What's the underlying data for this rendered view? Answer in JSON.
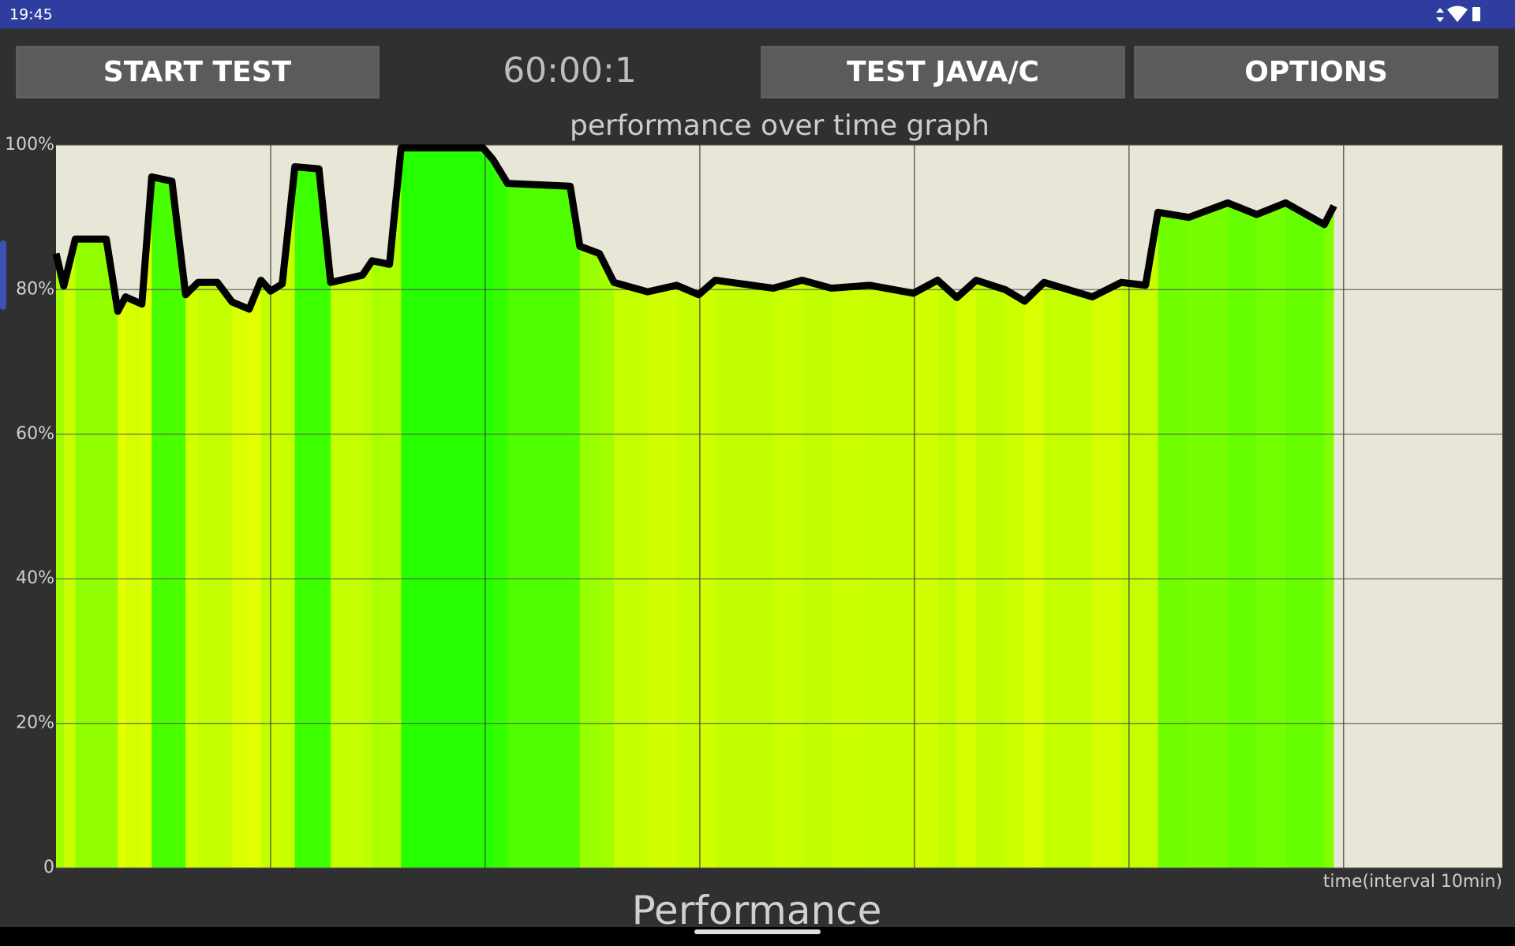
{
  "status_bar": {
    "time": "19:45"
  },
  "buttons": [
    "START TEST",
    "TEST JAVA/C",
    "OPTIONS"
  ],
  "timer": "60:00:1",
  "chart_data": {
    "type": "line",
    "title": "performance over time graph",
    "x_label": "time(interval 10min)",
    "x": [
      0,
      0.36,
      0.9,
      2.34,
      2.88,
      3.24,
      4.0,
      4.46,
      5.4,
      6.04,
      6.62,
      7.52,
      8.2,
      9.0,
      9.55,
      10.0,
      10.54,
      11.13,
      12.25,
      12.8,
      14.28,
      14.73,
      15.54,
      16.08,
      19.9,
      20.36,
      21.04,
      23.96,
      24.41,
      25.32,
      26.0,
      27.57,
      28.92,
      29.95,
      30.72,
      33.42,
      34.77,
      36.13,
      37.93,
      39.95,
      41.08,
      41.98,
      42.88,
      44.23,
      45.14,
      46.04,
      48.29,
      49.64,
      50.77,
      51.35,
      52.79,
      54.6,
      55.95,
      57.3,
      59.1,
      59.55
    ],
    "series": [
      {
        "name": "performance",
        "color": "#000000",
        "values": [
          85,
          80.5,
          87,
          87,
          77,
          79,
          78,
          95.6,
          95,
          79.3,
          81,
          81,
          78.3,
          77.3,
          81.3,
          79.8,
          80.8,
          97,
          96.7,
          81,
          82,
          84,
          83.5,
          99.6,
          99.6,
          98,
          94.7,
          94.3,
          86,
          85,
          81,
          79.7,
          80.6,
          79.3,
          81.3,
          80.2,
          81.3,
          80.2,
          80.6,
          79.5,
          81.3,
          78.9,
          81.3,
          80,
          78.4,
          81,
          79,
          81,
          80.6,
          90.7,
          90,
          92,
          90.4,
          92,
          89,
          91.6
        ]
      }
    ],
    "xlim": [
      0,
      67.4
    ],
    "xticks": [
      10,
      20,
      30,
      40,
      50,
      60
    ],
    "ylim": [
      0,
      100
    ],
    "yticks": [
      0,
      {
        "value": 20,
        "label": "20%"
      },
      {
        "value": 40,
        "label": "40%"
      },
      {
        "value": 60,
        "label": "60%"
      },
      {
        "value": 80,
        "label": "80%"
      },
      {
        "value": 100,
        "label": "100%"
      }
    ],
    "grid": true
  },
  "performance_heading": "Performance"
}
